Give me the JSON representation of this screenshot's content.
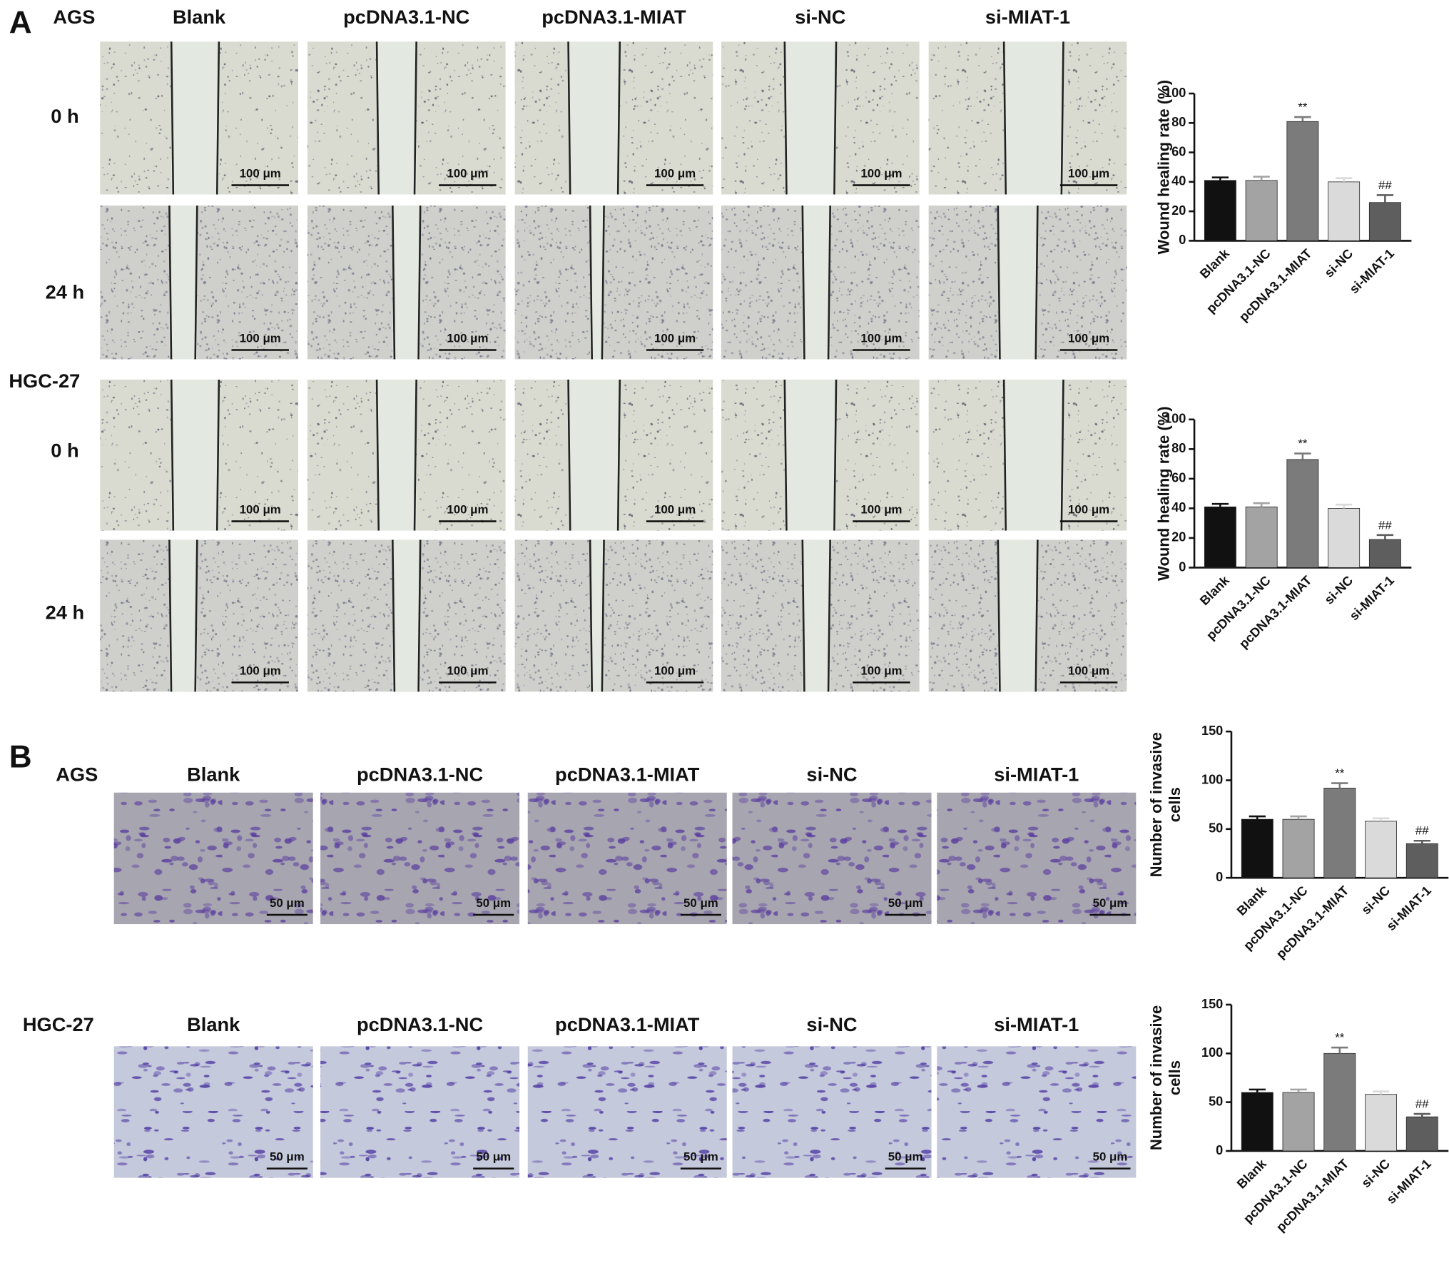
{
  "panel_a": {
    "label": "A",
    "cell_lines": [
      {
        "name": "AGS",
        "times": [
          "0 h",
          "24 h"
        ]
      },
      {
        "name": "HGC-27",
        "times": [
          "0 h",
          "24 h"
        ]
      }
    ],
    "columns": [
      "Blank",
      "pcDNA3.1-NC",
      "pcDNA3.1-MIAT",
      "si-NC",
      "si-MIAT-1"
    ],
    "scale_bar": "100 μm"
  },
  "panel_b": {
    "label": "B",
    "cell_lines": [
      "AGS",
      "HGC-27"
    ],
    "columns": [
      "Blank",
      "pcDNA3.1-NC",
      "pcDNA3.1-MIAT",
      "si-NC",
      "si-MIAT-1"
    ],
    "scale_bar": "50 μm"
  },
  "chart_data": [
    {
      "type": "bar",
      "ylabel": [
        "Wound healing rate (%)"
      ],
      "categories": [
        "Blank",
        "pcDNA3.1-NC",
        "pcDNA3.1-MIAT",
        "si-NC",
        "si-MIAT-1"
      ],
      "values": [
        41,
        41,
        81,
        40,
        26
      ],
      "errors": [
        2,
        2.5,
        3,
        2.5,
        5
      ],
      "annotations": [
        null,
        null,
        "**",
        null,
        "##"
      ],
      "colors": [
        "#111111",
        "#a3a3a3",
        "#7b7b7b",
        "#dadada",
        "#5e5e5e"
      ],
      "ylim": [
        0,
        100
      ],
      "yticks": [
        0,
        20,
        40,
        60,
        80,
        100
      ]
    },
    {
      "type": "bar",
      "ylabel": [
        "Wound healing rate (%)"
      ],
      "categories": [
        "Blank",
        "pcDNA3.1-NC",
        "pcDNA3.1-MIAT",
        "si-NC",
        "si-MIAT-1"
      ],
      "values": [
        41,
        41,
        73,
        40,
        19
      ],
      "errors": [
        2,
        2.5,
        4,
        2.5,
        3
      ],
      "annotations": [
        null,
        null,
        "**",
        null,
        "##"
      ],
      "colors": [
        "#111111",
        "#a3a3a3",
        "#7b7b7b",
        "#dadada",
        "#5e5e5e"
      ],
      "ylim": [
        0,
        100
      ],
      "yticks": [
        0,
        20,
        40,
        60,
        80,
        100
      ]
    },
    {
      "type": "bar",
      "ylabel": [
        "Number of invasive",
        "cells"
      ],
      "categories": [
        "Blank",
        "pcDNA3.1-NC",
        "pcDNA3.1-MIAT",
        "si-NC",
        "si-MIAT-1"
      ],
      "values": [
        60,
        60,
        92,
        58,
        35
      ],
      "errors": [
        3,
        3,
        5,
        3,
        3
      ],
      "annotations": [
        null,
        null,
        "**",
        null,
        "##"
      ],
      "colors": [
        "#111111",
        "#a3a3a3",
        "#7b7b7b",
        "#dadada",
        "#5e5e5e"
      ],
      "ylim": [
        0,
        150
      ],
      "yticks": [
        0,
        50,
        100,
        150
      ]
    },
    {
      "type": "bar",
      "ylabel": [
        "Number of invasive",
        "cells"
      ],
      "categories": [
        "Blank",
        "pcDNA3.1-NC",
        "pcDNA3.1-MIAT",
        "si-NC",
        "si-MIAT-1"
      ],
      "values": [
        60,
        60,
        100,
        58,
        35
      ],
      "errors": [
        3,
        3,
        6,
        3,
        3
      ],
      "annotations": [
        null,
        null,
        "**",
        null,
        "##"
      ],
      "colors": [
        "#111111",
        "#a3a3a3",
        "#7b7b7b",
        "#dadada",
        "#5e5e5e"
      ],
      "ylim": [
        0,
        150
      ],
      "yticks": [
        0,
        50,
        100,
        150
      ]
    }
  ]
}
